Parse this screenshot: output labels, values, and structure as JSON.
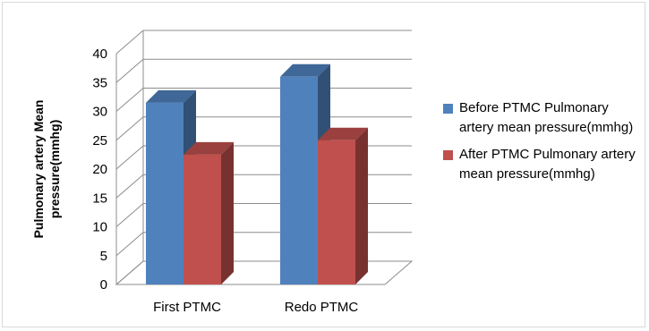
{
  "chart_data": {
    "type": "bar",
    "categories": [
      "First PTMC",
      "Redo PTMC"
    ],
    "series": [
      {
        "name": "Before PTMC Pulmonary artery mean pressure(mmhg)",
        "values": [
          31.5,
          36
        ],
        "color": "#4f81bd"
      },
      {
        "name": "After PTMC Pulmonary artery mean pressure(mmhg)",
        "values": [
          22.5,
          25
        ],
        "color": "#c0504d"
      }
    ],
    "title": "",
    "xlabel": "",
    "ylabel": "Pulmonary artery Mean pressure(mmhg)",
    "ylim": [
      0,
      40
    ],
    "yticks": [
      "0",
      "5",
      "10",
      "15",
      "20",
      "25",
      "30",
      "35",
      "40"
    ],
    "grid": true,
    "legend": "right"
  }
}
